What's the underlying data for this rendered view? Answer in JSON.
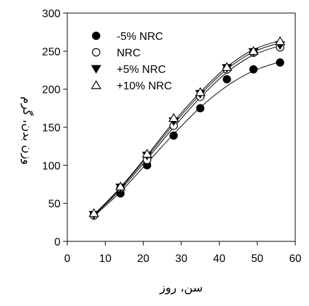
{
  "chart_data": {
    "type": "scatter",
    "title": "",
    "xlabel": "سن، روز",
    "ylabel": "وزن بدن، گرم",
    "xlim": [
      0,
      60
    ],
    "ylim": [
      0,
      300
    ],
    "x_ticks": [
      0,
      10,
      20,
      30,
      40,
      50,
      60
    ],
    "y_ticks": [
      0,
      50,
      100,
      150,
      200,
      250,
      300
    ],
    "grid": false,
    "legend_position": "top-left",
    "x": [
      7,
      14,
      21,
      28,
      35,
      42,
      49,
      56
    ],
    "series": [
      {
        "name": "-5% NRC",
        "marker": "filled-circle",
        "values": [
          34,
          63,
          100,
          139,
          175,
          213,
          226,
          235
        ],
        "fit": [
          33,
          65,
          103,
          141,
          176,
          204,
          224,
          236
        ]
      },
      {
        "name": "NRC",
        "marker": "open-circle",
        "values": [
          34,
          70,
          107,
          152,
          190,
          226,
          248,
          255
        ],
        "fit": [
          34,
          68,
          108,
          150,
          189,
          222,
          245,
          257
        ]
      },
      {
        "name": "+5% NRC",
        "marker": "filled-triangle-down",
        "values": [
          35,
          71,
          113,
          158,
          194,
          228,
          249,
          258
        ],
        "fit": [
          35,
          70,
          111,
          154,
          193,
          226,
          249,
          261
        ]
      },
      {
        "name": "+10% NRC",
        "marker": "open-triangle-up",
        "values": [
          37,
          72,
          115,
          162,
          196,
          229,
          250,
          263
        ],
        "fit": [
          35,
          71,
          113,
          157,
          196,
          229,
          252,
          264
        ]
      }
    ]
  }
}
